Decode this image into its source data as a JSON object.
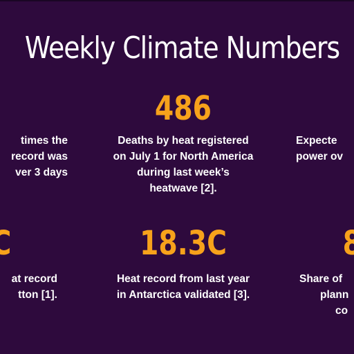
{
  "title": "Weekly Climate Numbers",
  "stats": [
    {
      "id": "top-left",
      "value": "",
      "lines": [
        "times the",
        "record was",
        "ver 3 days"
      ]
    },
    {
      "id": "top-center",
      "value": "486",
      "lines": [
        "Deaths by heat registered",
        "on July 1 for North America",
        "during last week’s",
        "heatwave [2]."
      ]
    },
    {
      "id": "top-right",
      "value": "",
      "lines": [
        "Expecte",
        "power ov"
      ]
    },
    {
      "id": "bottom-left",
      "value": "C",
      "lines": [
        "at record",
        "tton [1]."
      ]
    },
    {
      "id": "bottom-center",
      "value": "18.3C",
      "lines": [
        "Heat record from last year",
        "in Antarctica validated [3]."
      ]
    },
    {
      "id": "bottom-right",
      "value": "8",
      "lines": [
        "Share of",
        "plann",
        "co"
      ]
    }
  ],
  "colors": {
    "background": "#2e0a3d",
    "accent": "#f7a21b",
    "text": "#ffffff"
  }
}
